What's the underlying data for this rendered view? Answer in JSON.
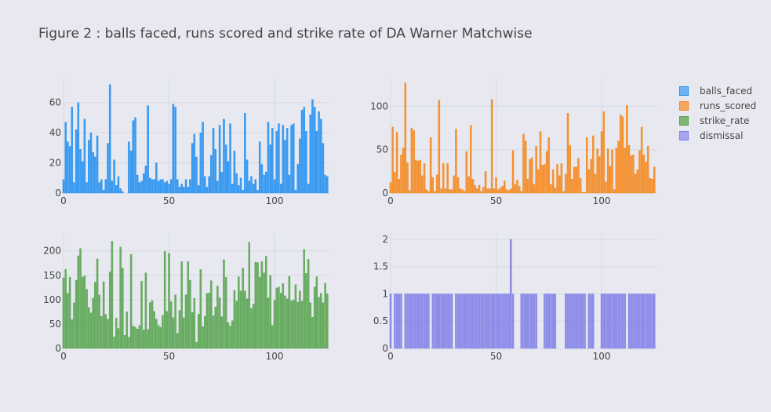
{
  "title": "Figure 2 : balls faced, runs scored and strike rate of DA Warner Matchwise",
  "legend": [
    {
      "label": "balls_faced",
      "color": "#1f8ef1"
    },
    {
      "label": "runs_scored",
      "color": "#f58518"
    },
    {
      "label": "strike_rate",
      "color": "#54a24b"
    },
    {
      "label": "dismissal",
      "color": "#7f7fe8"
    }
  ],
  "chart_data": [
    {
      "type": "bar",
      "name": "balls_faced",
      "color": "#1f8ef1",
      "xlim": [
        0,
        126
      ],
      "ylim": [
        0,
        76
      ],
      "xticks": [
        0,
        50,
        100
      ],
      "yticks": [
        0,
        20,
        40,
        60
      ],
      "x_start": 0,
      "values": [
        9,
        47,
        34,
        31,
        57,
        7,
        42,
        60,
        29,
        21,
        49,
        7,
        35,
        40,
        27,
        24,
        38,
        7,
        9,
        2,
        9,
        33,
        72,
        8,
        22,
        5,
        11,
        3,
        1,
        0,
        0,
        34,
        28,
        48,
        50,
        12,
        7,
        8,
        13,
        18,
        58,
        10,
        9,
        9,
        20,
        8,
        9,
        9,
        7,
        8,
        6,
        9,
        59,
        57,
        9,
        4,
        6,
        4,
        9,
        4,
        9,
        33,
        39,
        24,
        5,
        40,
        47,
        11,
        4,
        11,
        25,
        43,
        29,
        8,
        45,
        14,
        49,
        32,
        21,
        46,
        6,
        28,
        13,
        5,
        10,
        2,
        53,
        22,
        8,
        11,
        6,
        9,
        2,
        34,
        19,
        12,
        14,
        47,
        32,
        43,
        9,
        41,
        46,
        6,
        45,
        35,
        43,
        12,
        45,
        46,
        2,
        19,
        36,
        55,
        57,
        41,
        6,
        52,
        62,
        57,
        41,
        54,
        49,
        33,
        12,
        11
      ]
    },
    {
      "type": "bar",
      "name": "runs_scored",
      "color": "#f58518",
      "xlim": [
        0,
        126
      ],
      "ylim": [
        0,
        132
      ],
      "xticks": [
        0,
        50,
        100
      ],
      "yticks": [
        0,
        50,
        100
      ],
      "x_start": 0,
      "values": [
        12,
        76,
        24,
        70,
        16,
        44,
        52,
        127,
        35,
        3,
        75,
        72,
        38,
        37,
        38,
        20,
        34,
        4,
        2,
        64,
        18,
        2,
        21,
        107,
        5,
        34,
        5,
        34,
        4,
        4,
        20,
        74,
        18,
        5,
        4,
        2,
        48,
        19,
        78,
        16,
        9,
        5,
        9,
        2,
        7,
        25,
        5,
        5,
        108,
        5,
        18,
        4,
        6,
        8,
        14,
        4,
        3,
        5,
        49,
        10,
        15,
        8,
        2,
        68,
        60,
        16,
        39,
        41,
        10,
        54,
        27,
        71,
        32,
        33,
        48,
        64,
        10,
        27,
        6,
        33,
        20,
        34,
        2,
        22,
        92,
        55,
        16,
        30,
        30,
        40,
        17,
        1,
        1,
        64,
        27,
        39,
        66,
        22,
        51,
        42,
        71,
        94,
        13,
        51,
        31,
        50,
        4,
        52,
        60,
        90,
        88,
        52,
        101,
        55,
        43,
        44,
        22,
        27,
        49,
        76,
        44,
        36,
        54,
        17,
        16,
        30
      ]
    },
    {
      "type": "bar",
      "name": "strike_rate",
      "color": "#54a24b",
      "xlim": [
        0,
        126
      ],
      "ylim": [
        0,
        235
      ],
      "xticks": [
        0,
        50,
        100
      ],
      "yticks": [
        0,
        50,
        100,
        150,
        200
      ],
      "x_start": 0,
      "values": [
        145,
        162,
        113,
        146,
        59,
        94,
        140,
        190,
        205,
        146,
        149,
        121,
        84,
        73,
        103,
        136,
        184,
        110,
        66,
        137,
        70,
        60,
        157,
        220,
        24,
        62,
        41,
        208,
        165,
        27,
        75,
        23,
        193,
        46,
        44,
        40,
        47,
        138,
        38,
        155,
        39,
        94,
        98,
        76,
        60,
        47,
        44,
        68,
        199,
        76,
        195,
        96,
        63,
        110,
        31,
        78,
        178,
        63,
        110,
        178,
        140,
        74,
        103,
        13,
        70,
        162,
        45,
        66,
        113,
        114,
        139,
        67,
        85,
        128,
        104,
        65,
        182,
        146,
        53,
        46,
        57,
        119,
        97,
        147,
        118,
        165,
        118,
        102,
        218,
        82,
        91,
        177,
        176,
        146,
        178,
        155,
        189,
        104,
        150,
        47,
        99,
        124,
        126,
        113,
        133,
        108,
        102,
        148,
        98,
        99,
        131,
        95,
        118,
        97,
        203,
        154,
        183,
        94,
        64,
        126,
        147,
        105,
        113,
        94,
        134,
        112
      ]
    },
    {
      "type": "bar",
      "name": "dismissal",
      "color": "#7f7fe8",
      "xlim": [
        0,
        126
      ],
      "ylim": [
        0,
        2.1
      ],
      "xticks": [
        0,
        50,
        100
      ],
      "yticks": [
        0,
        0.5,
        1,
        1.5,
        2
      ],
      "x_start": 0,
      "values": [
        1,
        0,
        1,
        1,
        1,
        1,
        0,
        1,
        1,
        1,
        1,
        1,
        1,
        1,
        1,
        1,
        1,
        1,
        1,
        0,
        1,
        1,
        1,
        1,
        1,
        1,
        1,
        1,
        1,
        1,
        0,
        1,
        1,
        1,
        1,
        1,
        1,
        1,
        1,
        1,
        1,
        1,
        1,
        1,
        1,
        1,
        1,
        1,
        1,
        1,
        1,
        1,
        1,
        1,
        1,
        1,
        1,
        2,
        1,
        0,
        0,
        0,
        1,
        1,
        1,
        1,
        1,
        1,
        1,
        1,
        0,
        0,
        0,
        1,
        1,
        1,
        1,
        1,
        1,
        0,
        0,
        0,
        0,
        1,
        1,
        1,
        1,
        1,
        1,
        1,
        1,
        1,
        1,
        0,
        1,
        1,
        1,
        0,
        0,
        0,
        1,
        1,
        1,
        1,
        1,
        1,
        1,
        1,
        1,
        1,
        1,
        1,
        0,
        1,
        1,
        1,
        1,
        1,
        1,
        1,
        1,
        1,
        1,
        1,
        1,
        1
      ]
    }
  ]
}
